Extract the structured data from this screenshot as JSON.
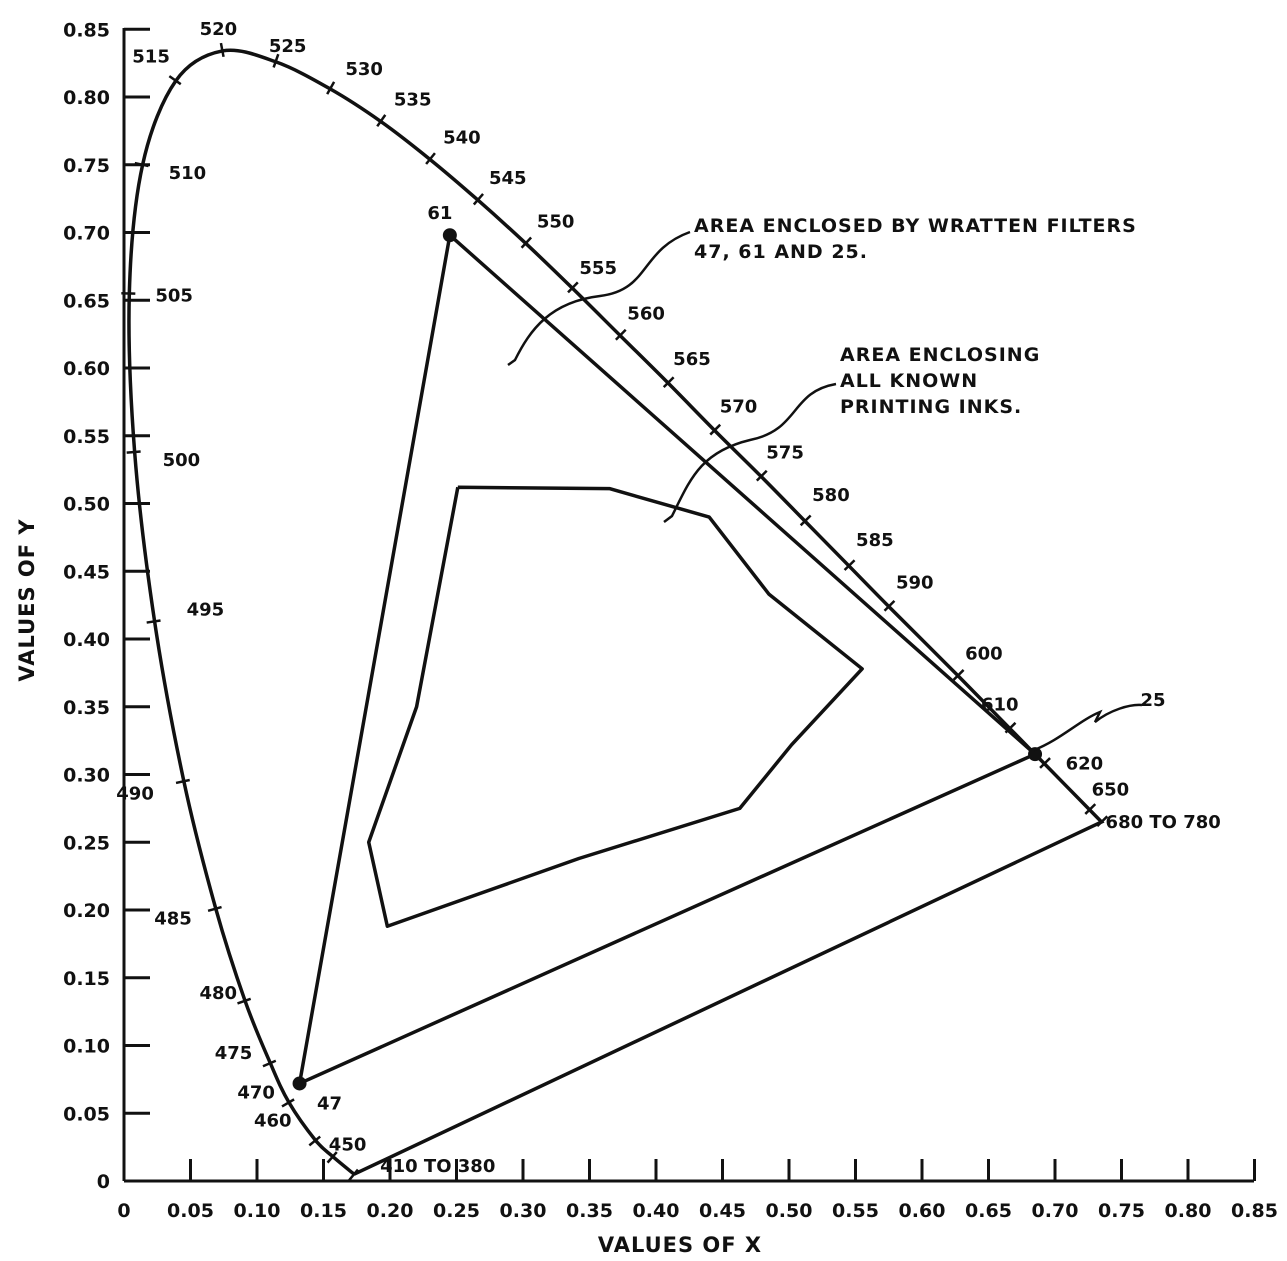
{
  "chart_data": {
    "type": "line",
    "xlabel": "VALUES OF X",
    "ylabel": "VALUES OF Y",
    "xlim": [
      0,
      0.85
    ],
    "ylim": [
      0,
      0.85
    ],
    "grid": false,
    "x_ticks": [
      "0",
      "0.05",
      "0.10",
      "0.15",
      "0.20",
      "0.25",
      "0.30",
      "0.35",
      "0.40",
      "0.45",
      "0.50",
      "0.55",
      "0.60",
      "0.65",
      "0.70",
      "0.75",
      "0.80",
      "0.85"
    ],
    "y_ticks": [
      "0",
      "0.05",
      "0.10",
      "0.15",
      "0.20",
      "0.25",
      "0.30",
      "0.35",
      "0.40",
      "0.45",
      "0.50",
      "0.55",
      "0.60",
      "0.65",
      "0.70",
      "0.75",
      "0.80",
      "0.85"
    ],
    "spectrum_locus": [
      {
        "wl": "410 TO 380",
        "x": 0.173,
        "y": 0.005
      },
      {
        "wl": "450",
        "x": 0.157,
        "y": 0.018
      },
      {
        "wl": "460",
        "x": 0.144,
        "y": 0.03
      },
      {
        "wl": "470",
        "x": 0.124,
        "y": 0.058
      },
      {
        "wl": "475",
        "x": 0.11,
        "y": 0.087
      },
      {
        "wl": "480",
        "x": 0.091,
        "y": 0.133
      },
      {
        "wl": "485",
        "x": 0.069,
        "y": 0.201
      },
      {
        "wl": "490",
        "x": 0.045,
        "y": 0.295
      },
      {
        "wl": "495",
        "x": 0.023,
        "y": 0.413
      },
      {
        "wl": "500",
        "x": 0.008,
        "y": 0.538
      },
      {
        "wl": "505",
        "x": 0.004,
        "y": 0.655
      },
      {
        "wl": "510",
        "x": 0.014,
        "y": 0.75
      },
      {
        "wl": "515",
        "x": 0.039,
        "y": 0.812
      },
      {
        "wl": "520",
        "x": 0.074,
        "y": 0.834
      },
      {
        "wl": "525",
        "x": 0.114,
        "y": 0.826
      },
      {
        "wl": "530",
        "x": 0.155,
        "y": 0.806
      },
      {
        "wl": "535",
        "x": 0.193,
        "y": 0.782
      },
      {
        "wl": "540",
        "x": 0.23,
        "y": 0.754
      },
      {
        "wl": "545",
        "x": 0.266,
        "y": 0.724
      },
      {
        "wl": "550",
        "x": 0.302,
        "y": 0.692
      },
      {
        "wl": "555",
        "x": 0.337,
        "y": 0.659
      },
      {
        "wl": "560",
        "x": 0.373,
        "y": 0.624
      },
      {
        "wl": "565",
        "x": 0.409,
        "y": 0.589
      },
      {
        "wl": "570",
        "x": 0.444,
        "y": 0.554
      },
      {
        "wl": "575",
        "x": 0.479,
        "y": 0.52
      },
      {
        "wl": "580",
        "x": 0.512,
        "y": 0.487
      },
      {
        "wl": "585",
        "x": 0.545,
        "y": 0.454
      },
      {
        "wl": "590",
        "x": 0.575,
        "y": 0.424
      },
      {
        "wl": "600",
        "x": 0.627,
        "y": 0.373
      },
      {
        "wl": "610",
        "x": 0.666,
        "y": 0.334
      },
      {
        "wl": "620",
        "x": 0.692,
        "y": 0.308
      },
      {
        "wl": "650",
        "x": 0.726,
        "y": 0.274
      },
      {
        "wl": "680 TO 780",
        "x": 0.735,
        "y": 0.265
      }
    ],
    "wratten_filters": {
      "label": "AREA ENCLOSED BY WRATTEN FILTERS",
      "label2": "47, 61 AND 25.",
      "points": [
        {
          "name": "61",
          "x": 0.245,
          "y": 0.698
        },
        {
          "name": "25",
          "x": 0.685,
          "y": 0.315
        },
        {
          "name": "47",
          "x": 0.132,
          "y": 0.072
        }
      ]
    },
    "printing_inks": {
      "label": "AREA ENCLOSING",
      "label2": "ALL KNOWN",
      "label3": "PRINTING INKS.",
      "points": [
        {
          "x": 0.251,
          "y": 0.512
        },
        {
          "x": 0.365,
          "y": 0.511
        },
        {
          "x": 0.44,
          "y": 0.49
        },
        {
          "x": 0.485,
          "y": 0.433
        },
        {
          "x": 0.555,
          "y": 0.378
        },
        {
          "x": 0.502,
          "y": 0.322
        },
        {
          "x": 0.463,
          "y": 0.275
        },
        {
          "x": 0.342,
          "y": 0.238
        },
        {
          "x": 0.198,
          "y": 0.188
        },
        {
          "x": 0.184,
          "y": 0.25
        },
        {
          "x": 0.22,
          "y": 0.35
        },
        {
          "x": 0.251,
          "y": 0.512
        }
      ]
    }
  }
}
